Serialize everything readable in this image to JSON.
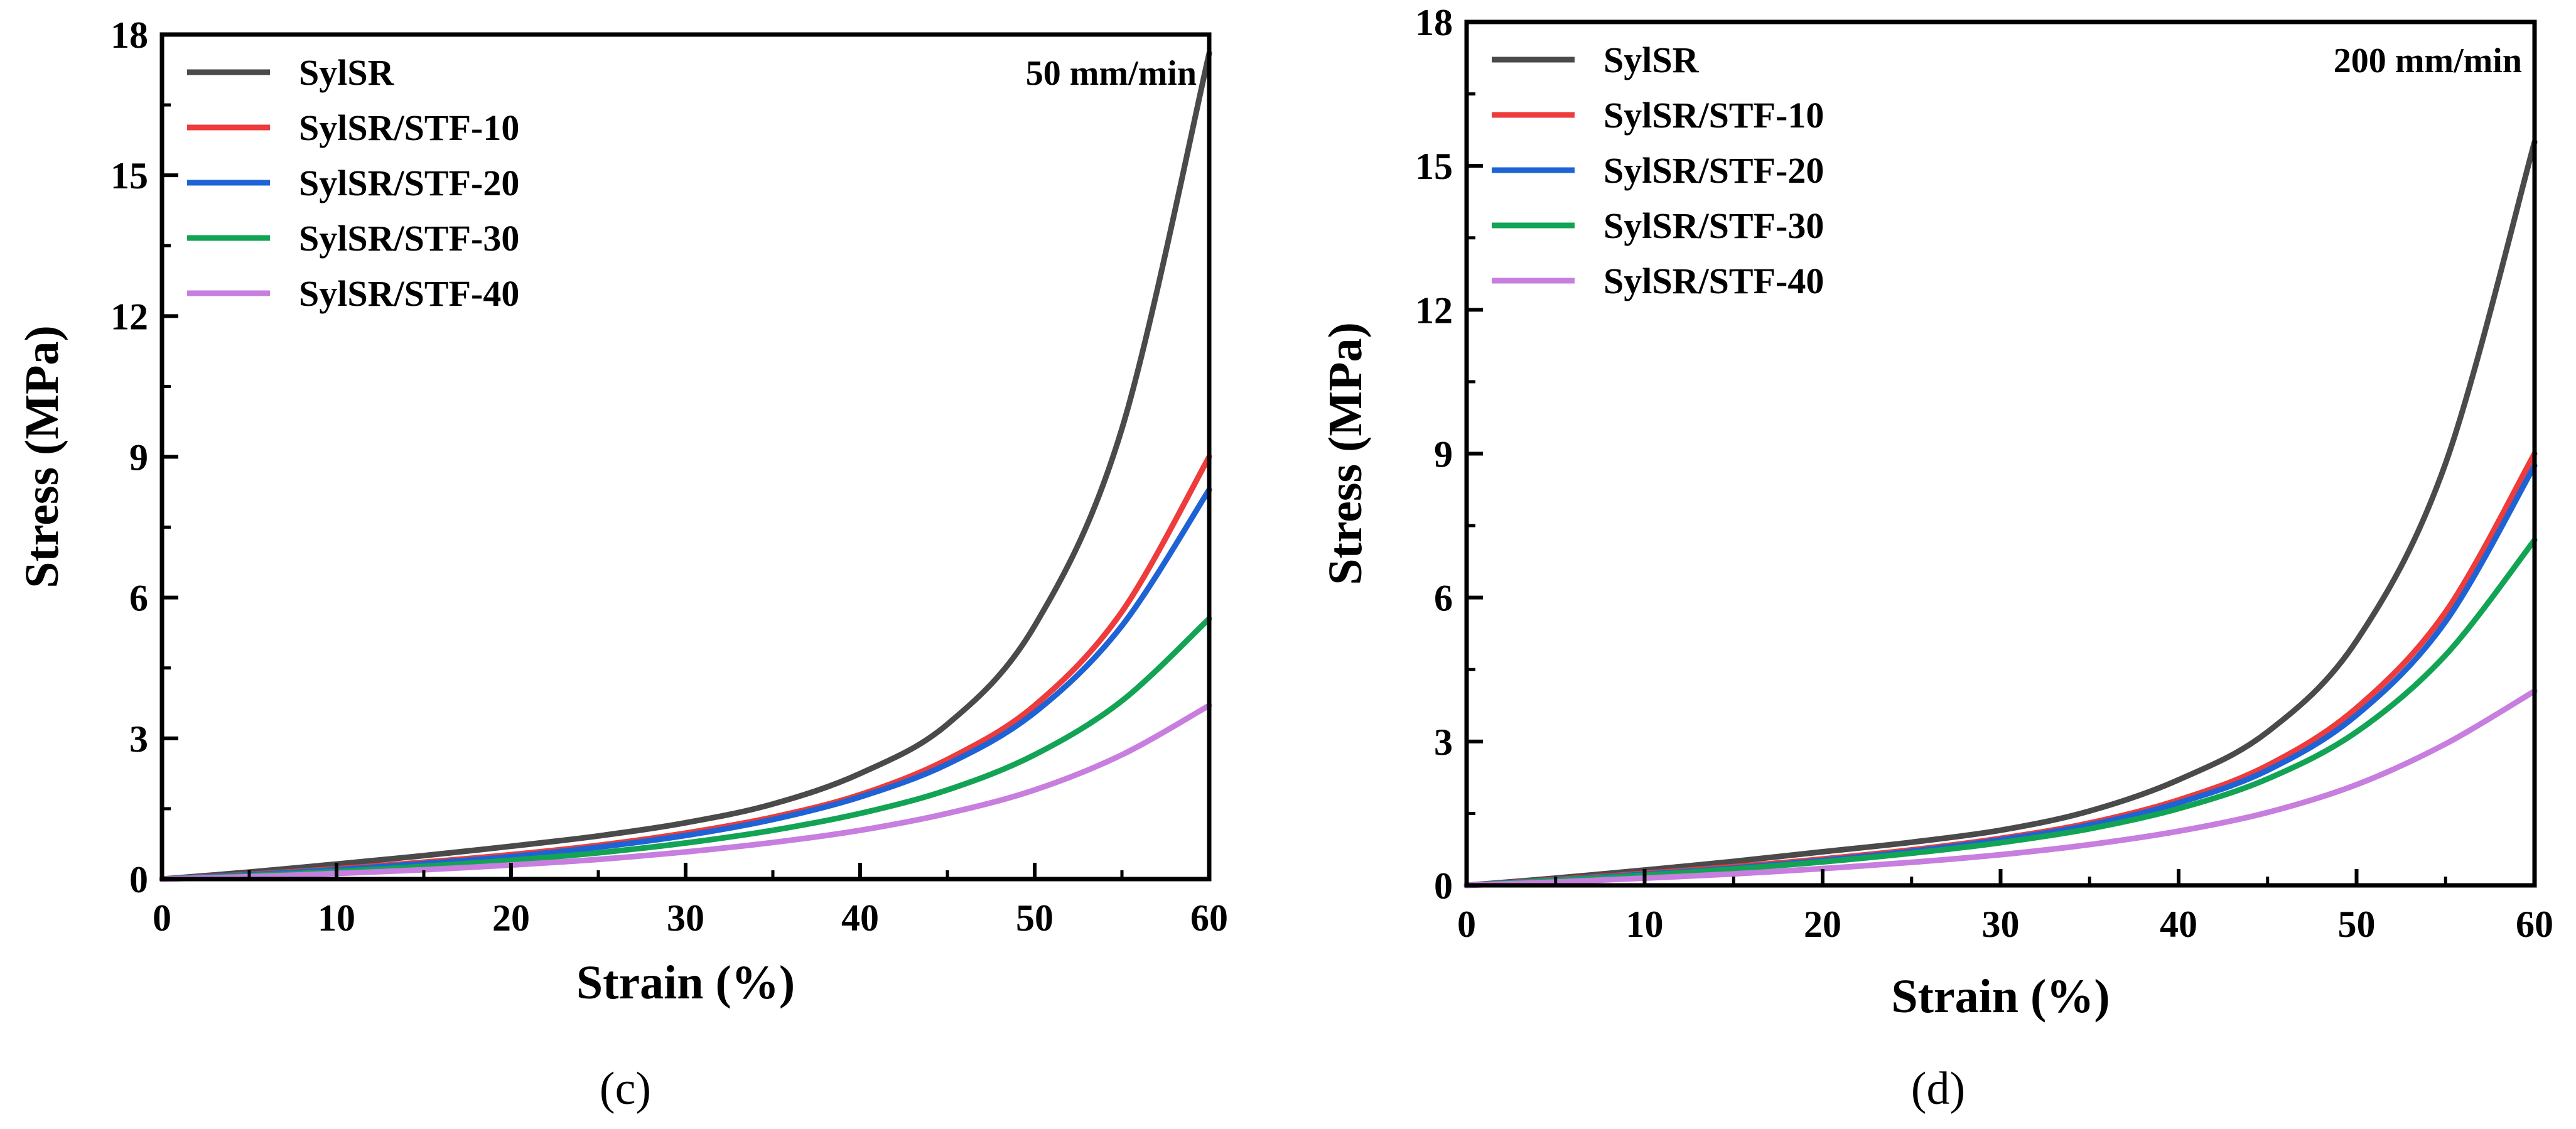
{
  "chart_data": [
    {
      "type": "line",
      "caption": "(c)",
      "annotation": "50 mm/min",
      "xlabel": "Strain (%)",
      "ylabel": "Stress (MPa)",
      "xlim": [
        0,
        60
      ],
      "ylim": [
        0,
        18
      ],
      "xticks": [
        0,
        10,
        20,
        30,
        40,
        50,
        60
      ],
      "yticks": [
        0,
        3,
        6,
        9,
        12,
        15,
        18
      ],
      "x": [
        0,
        5,
        10,
        15,
        20,
        25,
        30,
        35,
        40,
        45,
        50,
        55,
        60
      ],
      "series": [
        {
          "name": "SylSR",
          "color": "#4a4a4a",
          "values": [
            0,
            0.15,
            0.32,
            0.5,
            0.7,
            0.92,
            1.2,
            1.6,
            2.25,
            3.3,
            5.4,
            9.6,
            17.6
          ]
        },
        {
          "name": "SylSR/STF-10",
          "color": "#ee3b3b",
          "values": [
            0,
            0.1,
            0.22,
            0.36,
            0.52,
            0.72,
            0.98,
            1.32,
            1.8,
            2.55,
            3.7,
            5.7,
            9.0
          ]
        },
        {
          "name": "SylSR/STF-20",
          "color": "#1e63d6",
          "values": [
            0,
            0.09,
            0.2,
            0.33,
            0.48,
            0.68,
            0.93,
            1.27,
            1.75,
            2.45,
            3.55,
            5.4,
            8.3
          ]
        },
        {
          "name": "SylSR/STF-30",
          "color": "#12a454",
          "values": [
            0,
            0.07,
            0.16,
            0.27,
            0.4,
            0.56,
            0.77,
            1.04,
            1.4,
            1.9,
            2.65,
            3.8,
            5.55
          ]
        },
        {
          "name": "SylSR/STF-40",
          "color": "#c77ede",
          "values": [
            0,
            0.05,
            0.12,
            0.2,
            0.3,
            0.42,
            0.58,
            0.78,
            1.04,
            1.4,
            1.9,
            2.65,
            3.7
          ]
        }
      ]
    },
    {
      "type": "line",
      "caption": "(d)",
      "annotation": "200 mm/min",
      "xlabel": "Strain (%)",
      "ylabel": "Stress (MPa)",
      "xlim": [
        0,
        60
      ],
      "ylim": [
        0,
        18
      ],
      "xticks": [
        0,
        10,
        20,
        30,
        40,
        50,
        60
      ],
      "yticks": [
        0,
        3,
        6,
        9,
        12,
        15,
        18
      ],
      "x": [
        0,
        5,
        10,
        15,
        20,
        25,
        30,
        35,
        40,
        45,
        50,
        55,
        60
      ],
      "series": [
        {
          "name": "SylSR",
          "color": "#4a4a4a",
          "values": [
            0,
            0.15,
            0.32,
            0.5,
            0.7,
            0.9,
            1.15,
            1.55,
            2.2,
            3.2,
            5.1,
            8.8,
            15.5
          ]
        },
        {
          "name": "SylSR/STF-10",
          "color": "#ee3b3b",
          "values": [
            0,
            0.12,
            0.25,
            0.39,
            0.55,
            0.74,
            0.98,
            1.3,
            1.78,
            2.5,
            3.7,
            5.7,
            9.0
          ]
        },
        {
          "name": "SylSR/STF-20",
          "color": "#1e63d6",
          "values": [
            0,
            0.11,
            0.23,
            0.36,
            0.52,
            0.71,
            0.95,
            1.26,
            1.72,
            2.4,
            3.55,
            5.5,
            8.75
          ]
        },
        {
          "name": "SylSR/STF-30",
          "color": "#12a454",
          "values": [
            0,
            0.1,
            0.21,
            0.34,
            0.49,
            0.67,
            0.89,
            1.18,
            1.6,
            2.22,
            3.2,
            4.8,
            7.2
          ]
        },
        {
          "name": "SylSR/STF-40",
          "color": "#c77ede",
          "values": [
            0,
            0.07,
            0.15,
            0.24,
            0.35,
            0.48,
            0.64,
            0.85,
            1.13,
            1.52,
            2.1,
            2.95,
            4.05
          ]
        }
      ]
    }
  ]
}
